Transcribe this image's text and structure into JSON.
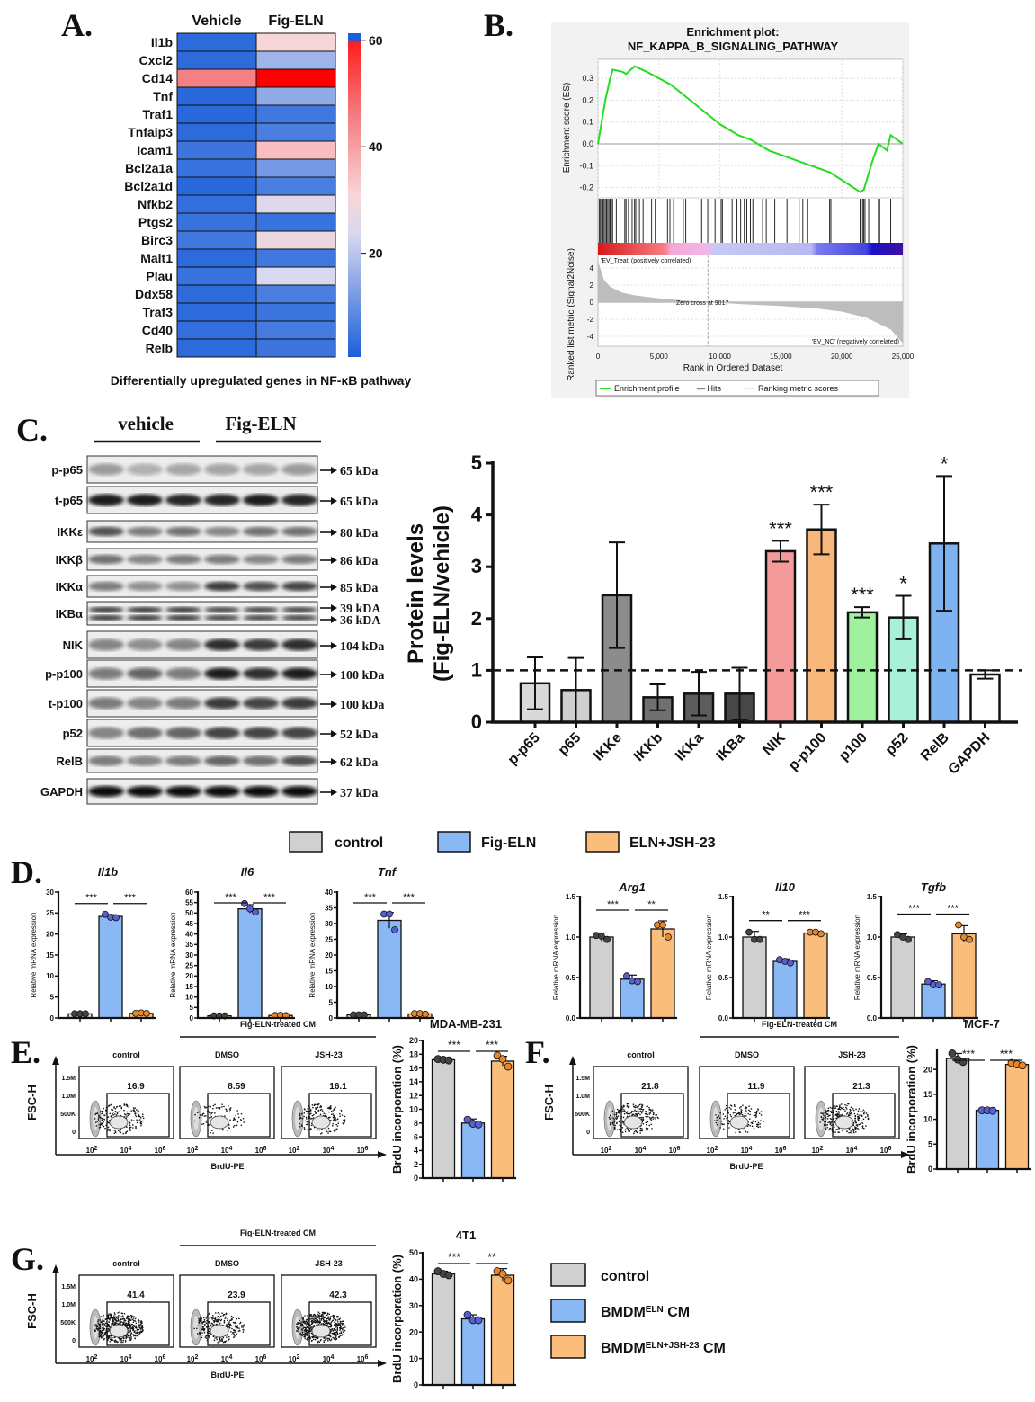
{
  "panel_labels": {
    "A": "A.",
    "B": "B.",
    "C": "C.",
    "D": "D.",
    "E": "E.",
    "F": "F.",
    "G": "G."
  },
  "chart_data": [
    {
      "type": "heatmap",
      "columns": [
        "Vehicle",
        "Fig-ELN"
      ],
      "rows": [
        "Il1b",
        "Cxcl2",
        "Cd14",
        "Tnf",
        "Traf1",
        "Tnfaip3",
        "Icam1",
        "Bcl2a1a",
        "Bcl2a1d",
        "Nfkb2",
        "Ptgs2",
        "Birc3",
        "Malt1",
        "Plau",
        "Ddx58",
        "Traf3",
        "Cd40",
        "Relb"
      ],
      "values": [
        [
          4,
          30
        ],
        [
          4,
          16
        ],
        [
          44,
          60
        ],
        [
          3,
          15
        ],
        [
          3,
          8
        ],
        [
          4,
          10
        ],
        [
          7,
          34
        ],
        [
          6,
          13
        ],
        [
          3,
          10
        ],
        [
          5,
          22
        ],
        [
          6,
          6
        ],
        [
          8,
          26
        ],
        [
          4,
          8
        ],
        [
          6,
          20
        ],
        [
          4,
          10
        ],
        [
          4,
          7
        ],
        [
          5,
          9
        ],
        [
          4,
          7
        ]
      ],
      "colorbar": {
        "range": [
          0,
          60
        ],
        "ticks": [
          60,
          40,
          20
        ],
        "tick_labels": [
          "60",
          "40",
          "20"
        ]
      },
      "colors": {
        "low": "#1a5fd9",
        "mid": "#d8d8ee",
        "high": "#ff0000"
      },
      "caption": "Differentially upregulated genes in NF-κB pathway"
    },
    {
      "type": "line",
      "title": [
        "Enrichment plot:",
        "NF_KAPPA_B_SIGNALING_PATHWAY"
      ],
      "ylabel_top": "Enrichment score (ES)",
      "ylabel_bottom": "Ranked list metric (Signal2Noise)",
      "xlabel": "Rank in Ordered Dataset",
      "xlim": [
        0,
        25000
      ],
      "x_ticks": [
        0,
        5000,
        10000,
        15000,
        20000,
        25000
      ],
      "x_tick_labels": [
        "0",
        "5,000",
        "10,000",
        "15,000",
        "20,000",
        "25,000"
      ],
      "es_ticks": [
        0.3,
        0.2,
        0.1,
        0.0,
        -0.1,
        -0.2
      ],
      "es_tick_labels": [
        "0.3",
        "0.2",
        "0.1",
        "0.0",
        "-0.1",
        "-0.2"
      ],
      "metric_ticks": [
        4,
        2,
        0,
        -2,
        -4
      ],
      "metric_tick_labels": [
        "4",
        "2",
        "0",
        "-2",
        "-4"
      ],
      "es_curve": {
        "x": [
          0,
          300,
          600,
          1000,
          1200,
          2000,
          2300,
          3000,
          4000,
          6000,
          8000,
          10000,
          11500,
          12500,
          14000,
          16000,
          17500,
          19000,
          21500,
          21800,
          22500,
          23000,
          23700,
          24000,
          25000
        ],
        "y": [
          0,
          0.1,
          0.2,
          0.3,
          0.34,
          0.33,
          0.32,
          0.355,
          0.33,
          0.27,
          0.18,
          0.09,
          0.04,
          0.02,
          -0.03,
          -0.07,
          -0.1,
          -0.13,
          -0.22,
          -0.21,
          -0.08,
          0.0,
          -0.03,
          0.04,
          0.0
        ]
      },
      "hits": [
        100,
        200,
        300,
        400,
        500,
        600,
        700,
        800,
        900,
        1000,
        1100,
        1200,
        1500,
        1800,
        2200,
        2300,
        2500,
        2800,
        3000,
        3100,
        3400,
        3700,
        4400,
        4700,
        5700,
        5900,
        6200,
        7000,
        7200,
        8500,
        9000,
        9600,
        10100,
        10200,
        11000,
        11400,
        11700,
        12000,
        12200,
        12500,
        12700,
        13500,
        13800,
        14500,
        15500,
        16500,
        16800,
        17200,
        19000,
        19100,
        21500,
        21700,
        21800,
        21900,
        22200,
        23000,
        23100,
        24000
      ],
      "metric_curve": {
        "x": [
          0,
          500,
          1000,
          2000,
          3000,
          5000,
          7000,
          9017,
          12000,
          15000,
          18000,
          20000,
          22000,
          24000,
          25000
        ],
        "y": [
          4.8,
          2.6,
          1.8,
          1.1,
          0.8,
          0.45,
          0.2,
          0,
          -0.25,
          -0.45,
          -0.75,
          -1.1,
          -1.8,
          -3.2,
          -4.8
        ]
      },
      "zero_cross_label": "Zero cross at 9017",
      "pos_label": "'EV_Treat' (positively correlated)",
      "neg_label": "'EV_NC' (negatively correlated)",
      "legend": [
        "Enrichment profile",
        "— Hits",
        "Ranking metric scores"
      ],
      "colors": {
        "profile": "#22dd22",
        "pos": "#e03030",
        "neg": "#3333cc"
      }
    },
    {
      "type": "bar",
      "ylabel": [
        "Protein levels",
        "(Fig-ELN/vehicle)"
      ],
      "categories": [
        "p-p65",
        "p65",
        "IKKe",
        "IKKb",
        "IKKa",
        "IKBa",
        "NIK",
        "p-p100",
        "p100",
        "p52",
        "RelB",
        "GAPDH"
      ],
      "values": [
        0.75,
        0.62,
        2.45,
        0.48,
        0.55,
        0.55,
        3.3,
        3.72,
        2.12,
        2.02,
        3.45,
        0.92
      ],
      "errors": [
        0.5,
        0.62,
        1.02,
        0.25,
        0.42,
        0.5,
        0.2,
        0.48,
        0.1,
        0.42,
        1.3,
        0.08
      ],
      "significance": [
        "",
        "",
        "",
        "",
        "",
        "",
        "***",
        "***",
        "***",
        "*",
        "*",
        ""
      ],
      "colors": [
        "#d9d9d9",
        "#cfcfcf",
        "#8c8c8c",
        "#707070",
        "#5c5c5c",
        "#474747",
        "#f59a9a",
        "#f8b77a",
        "#9ef29e",
        "#a8f0d8",
        "#7fb2f0",
        "#ffffff"
      ],
      "ylim": [
        0,
        5
      ],
      "yticks": [
        0,
        1,
        2,
        3,
        4,
        5
      ],
      "ytick_labels": [
        "0",
        "1",
        "2",
        "3",
        "4",
        "5"
      ],
      "reference_line": 1
    },
    {
      "type": "bar",
      "title": "Il1b",
      "ylabel": "Relative mRNA expression",
      "groups": [
        "control",
        "Fig-ELN",
        "ELN+JSH-23"
      ],
      "values": [
        1,
        24.2,
        1.1
      ],
      "errors": [
        0.1,
        0.4,
        0.1
      ],
      "points": [
        [
          1,
          1,
          1
        ],
        [
          24.7,
          24,
          23.9
        ],
        [
          1.1,
          1.2,
          1.1
        ]
      ],
      "significance": [
        "***",
        "***"
      ],
      "ylim": [
        0,
        30
      ],
      "yticks": [
        0,
        5,
        10,
        15,
        20,
        25,
        30
      ],
      "ytick_labels": [
        "0",
        "5",
        "10",
        "15",
        "20",
        "25",
        "30"
      ]
    },
    {
      "type": "bar",
      "title": "Il6",
      "ylabel": "Relative mRNA expression",
      "groups": [
        "control",
        "Fig-ELN",
        "ELN+JSH-23"
      ],
      "values": [
        1,
        52,
        1.2
      ],
      "errors": [
        0.1,
        2,
        0.1
      ],
      "points": [
        [
          1,
          1,
          1
        ],
        [
          54.5,
          52,
          50.5
        ],
        [
          1.2,
          1.3,
          1.1
        ]
      ],
      "significance": [
        "***",
        "***"
      ],
      "ylim": [
        0,
        60
      ],
      "yticks": [
        0,
        5,
        10,
        15,
        20,
        25,
        30,
        35,
        40,
        45,
        50,
        55,
        60
      ],
      "ytick_labels": [
        "0",
        "5",
        "10",
        "15",
        "20",
        "25",
        "30",
        "35",
        "40",
        "45",
        "50",
        "55",
        "60"
      ]
    },
    {
      "type": "bar",
      "title": "Tnf",
      "ylabel": "Relative mRNA expression",
      "groups": [
        "control",
        "Fig-ELN",
        "ELN+JSH-23"
      ],
      "values": [
        1,
        31,
        1.3
      ],
      "errors": [
        0.1,
        2.5,
        0.2
      ],
      "points": [
        [
          1,
          1,
          1
        ],
        [
          33,
          33,
          28
        ],
        [
          1.4,
          1.4,
          1.2
        ]
      ],
      "significance": [
        "***",
        "***"
      ],
      "ylim": [
        0,
        40
      ],
      "yticks": [
        0,
        5,
        10,
        15,
        20,
        25,
        30,
        35,
        40
      ],
      "ytick_labels": [
        "0",
        "5",
        "10",
        "15",
        "20",
        "25",
        "30",
        "35",
        "40"
      ]
    },
    {
      "type": "bar",
      "title": "Arg1",
      "ylabel": "Relative mRNA expression",
      "groups": [
        "control",
        "Fig-ELN",
        "ELN+JSH-23"
      ],
      "values": [
        1,
        0.48,
        1.1
      ],
      "errors": [
        0.05,
        0.05,
        0.1
      ],
      "points": [
        [
          1.02,
          1.01,
          0.97
        ],
        [
          0.52,
          0.46,
          0.45
        ],
        [
          1.15,
          1.15,
          1.0
        ]
      ],
      "significance": [
        "***",
        "**"
      ],
      "ylim": [
        0,
        1.5
      ],
      "yticks": [
        0,
        0.5,
        1,
        1.5
      ],
      "ytick_labels": [
        "0.0",
        "0.5",
        "1.0",
        "1.5"
      ]
    },
    {
      "type": "bar",
      "title": "Il10",
      "ylabel": "Relative mRNA expression",
      "groups": [
        "control",
        "Fig-ELN",
        "ELN+JSH-23"
      ],
      "values": [
        1,
        0.7,
        1.05
      ],
      "errors": [
        0.07,
        0.03,
        0.02
      ],
      "points": [
        [
          1.06,
          0.97,
          0.97
        ],
        [
          0.72,
          0.7,
          0.68
        ],
        [
          1.06,
          1.06,
          1.04
        ]
      ],
      "significance": [
        "**",
        "***"
      ],
      "ylim": [
        0,
        1.5
      ],
      "yticks": [
        0,
        0.5,
        1,
        1.5
      ],
      "ytick_labels": [
        "0.0",
        "0.5",
        "1.0",
        "1.5"
      ]
    },
    {
      "type": "bar",
      "title": "Tgfb",
      "ylabel": "Relative mRNA expression",
      "groups": [
        "control",
        "Fig-ELN",
        "ELN+JSH-23"
      ],
      "values": [
        1,
        0.42,
        1.04
      ],
      "errors": [
        0.04,
        0.04,
        0.1
      ],
      "points": [
        [
          1.03,
          1.0,
          0.97
        ],
        [
          0.45,
          0.41,
          0.41
        ],
        [
          1.15,
          1.0,
          0.97
        ]
      ],
      "significance": [
        "***",
        "***"
      ],
      "ylim": [
        0,
        1.5
      ],
      "yticks": [
        0,
        0.5,
        1,
        1.5
      ],
      "ytick_labels": [
        "0.0",
        "0.5",
        "1.0",
        "1.5"
      ]
    },
    {
      "type": "bar",
      "title": "MDA-MB-231",
      "ylabel": "BrdU incorporation (%)",
      "groups": [
        "control",
        "BMDM ELN CM",
        "BMDM ELN+JSH-23 CM"
      ],
      "values": [
        17.2,
        8,
        17
      ],
      "errors": [
        0.2,
        0.6,
        0.7
      ],
      "points": [
        [
          17.3,
          17.2,
          17.1
        ],
        [
          8.5,
          7.9,
          7.8
        ],
        [
          17.8,
          17.3,
          16.2
        ]
      ],
      "significance": [
        "***",
        "***"
      ],
      "ylim": [
        0,
        20
      ],
      "yticks": [
        0,
        2,
        4,
        6,
        8,
        10,
        12,
        14,
        16,
        18,
        20
      ],
      "ytick_labels": [
        "0",
        "2",
        "4",
        "6",
        "8",
        "10",
        "12",
        "14",
        "16",
        "18",
        "20"
      ]
    },
    {
      "type": "bar",
      "title": "MCF-7",
      "ylabel": "BrdU incorporation (%)",
      "groups": [
        "control",
        "BMDM ELN CM",
        "BMDM ELN+JSH-23 CM"
      ],
      "values": [
        22.2,
        11.8,
        21
      ],
      "errors": [
        1,
        0.1,
        0.4
      ],
      "points": [
        [
          23.2,
          22,
          21.5
        ],
        [
          11.8,
          11.8,
          11.7
        ],
        [
          21.3,
          21,
          20.8
        ]
      ],
      "significance": [
        "***",
        "***"
      ],
      "ylim": [
        0,
        24
      ],
      "yticks": [
        0,
        5,
        10,
        15,
        20
      ],
      "ytick_labels": [
        "0",
        "5",
        "10",
        "15",
        "20"
      ]
    },
    {
      "type": "bar",
      "title": "4T1",
      "ylabel": "BrdU incorporation (%)",
      "groups": [
        "control",
        "BMDM ELN CM",
        "BMDM ELN+JSH-23 CM"
      ],
      "values": [
        42,
        25,
        41.5
      ],
      "errors": [
        1,
        1.5,
        2.5
      ],
      "points": [
        [
          43,
          42,
          41.5
        ],
        [
          26.5,
          24.5,
          24.5
        ],
        [
          43,
          42,
          39.5
        ]
      ],
      "significance": [
        "***",
        "**"
      ],
      "ylim": [
        0,
        50
      ],
      "yticks": [
        0,
        10,
        20,
        30,
        40,
        50
      ],
      "ytick_labels": [
        "0",
        "10",
        "20",
        "30",
        "40",
        "50"
      ]
    }
  ],
  "group_colors": {
    "fill": [
      "#d0d0d0",
      "#8ab8f5",
      "#fbbd7b"
    ],
    "points": [
      "#444444",
      "#5a5fcf",
      "#e8862a"
    ]
  },
  "blot": {
    "header": [
      "vehicle",
      "Fig-ELN"
    ],
    "rows": [
      {
        "label": "p-p65",
        "kda": [
          "65 kDa"
        ],
        "intensity": [
          0.35,
          0.25,
          0.3,
          0.3,
          0.3,
          0.35
        ]
      },
      {
        "label": "t-p65",
        "kda": [
          "65 kDa"
        ],
        "intensity": [
          0.95,
          0.95,
          0.9,
          0.9,
          0.95,
          0.9
        ]
      },
      {
        "label": "IKKε",
        "kda": [
          "80 kDa"
        ],
        "intensity": [
          0.7,
          0.5,
          0.55,
          0.45,
          0.55,
          0.55
        ]
      },
      {
        "label": "IKKβ",
        "kda": [
          "86 kDa"
        ],
        "intensity": [
          0.55,
          0.45,
          0.5,
          0.5,
          0.45,
          0.5
        ]
      },
      {
        "label": "IKKα",
        "kda": [
          "85 kDa"
        ],
        "intensity": [
          0.5,
          0.4,
          0.4,
          0.8,
          0.7,
          0.75
        ]
      },
      {
        "label": "IKBα",
        "kda": [
          "39 kDA",
          "36 kDA"
        ],
        "intensity": [
          0.85,
          0.85,
          0.85,
          0.8,
          0.8,
          0.8
        ]
      },
      {
        "label": "NIK",
        "kda": [
          "104 kDa"
        ],
        "intensity": [
          0.45,
          0.4,
          0.45,
          0.85,
          0.8,
          0.85
        ]
      },
      {
        "label": "p-p100",
        "kda": [
          "100 kDa"
        ],
        "intensity": [
          0.5,
          0.6,
          0.5,
          0.95,
          0.85,
          0.95
        ]
      },
      {
        "label": "t-p100",
        "kda": [
          "100 kDa"
        ],
        "intensity": [
          0.5,
          0.45,
          0.5,
          0.8,
          0.75,
          0.8
        ]
      },
      {
        "label": "p52",
        "kda": [
          "52 kDa"
        ],
        "intensity": [
          0.45,
          0.55,
          0.6,
          0.75,
          0.75,
          0.75
        ]
      },
      {
        "label": "RelB",
        "kda": [
          "62 kDa"
        ],
        "intensity": [
          0.5,
          0.45,
          0.5,
          0.6,
          0.55,
          0.7
        ]
      },
      {
        "label": "GAPDH",
        "kda": [
          "37 kDa"
        ],
        "intensity": [
          1,
          1,
          1,
          1,
          1,
          1
        ]
      }
    ]
  },
  "legend_D": [
    "control",
    "Fig-ELN",
    "ELN+JSH-23"
  ],
  "legend_G": [
    {
      "main": "control",
      "sup": "",
      "tail": ""
    },
    {
      "main": "BMDM",
      "sup": "ELN",
      "tail": " CM"
    },
    {
      "main": "BMDM",
      "sup": "ELN+JSH-23",
      "tail": " CM"
    }
  ],
  "flow": {
    "ylabel": "FSC-H",
    "xlabel": "BrdU-PE",
    "yticks": [
      "1.5M",
      "1.0M",
      "500K",
      "0"
    ],
    "xticks": [
      "10",
      "10",
      "10"
    ],
    "xexp": [
      "2",
      "4",
      "6"
    ],
    "group_label": "Fig-ELN-treated CM",
    "columns": [
      "control",
      "DMSO",
      "JSH-23"
    ],
    "E": [
      "16.9",
      "8.59",
      "16.1"
    ],
    "F": [
      "21.8",
      "11.9",
      "21.3"
    ],
    "G": [
      "41.4",
      "23.9",
      "42.3"
    ]
  }
}
